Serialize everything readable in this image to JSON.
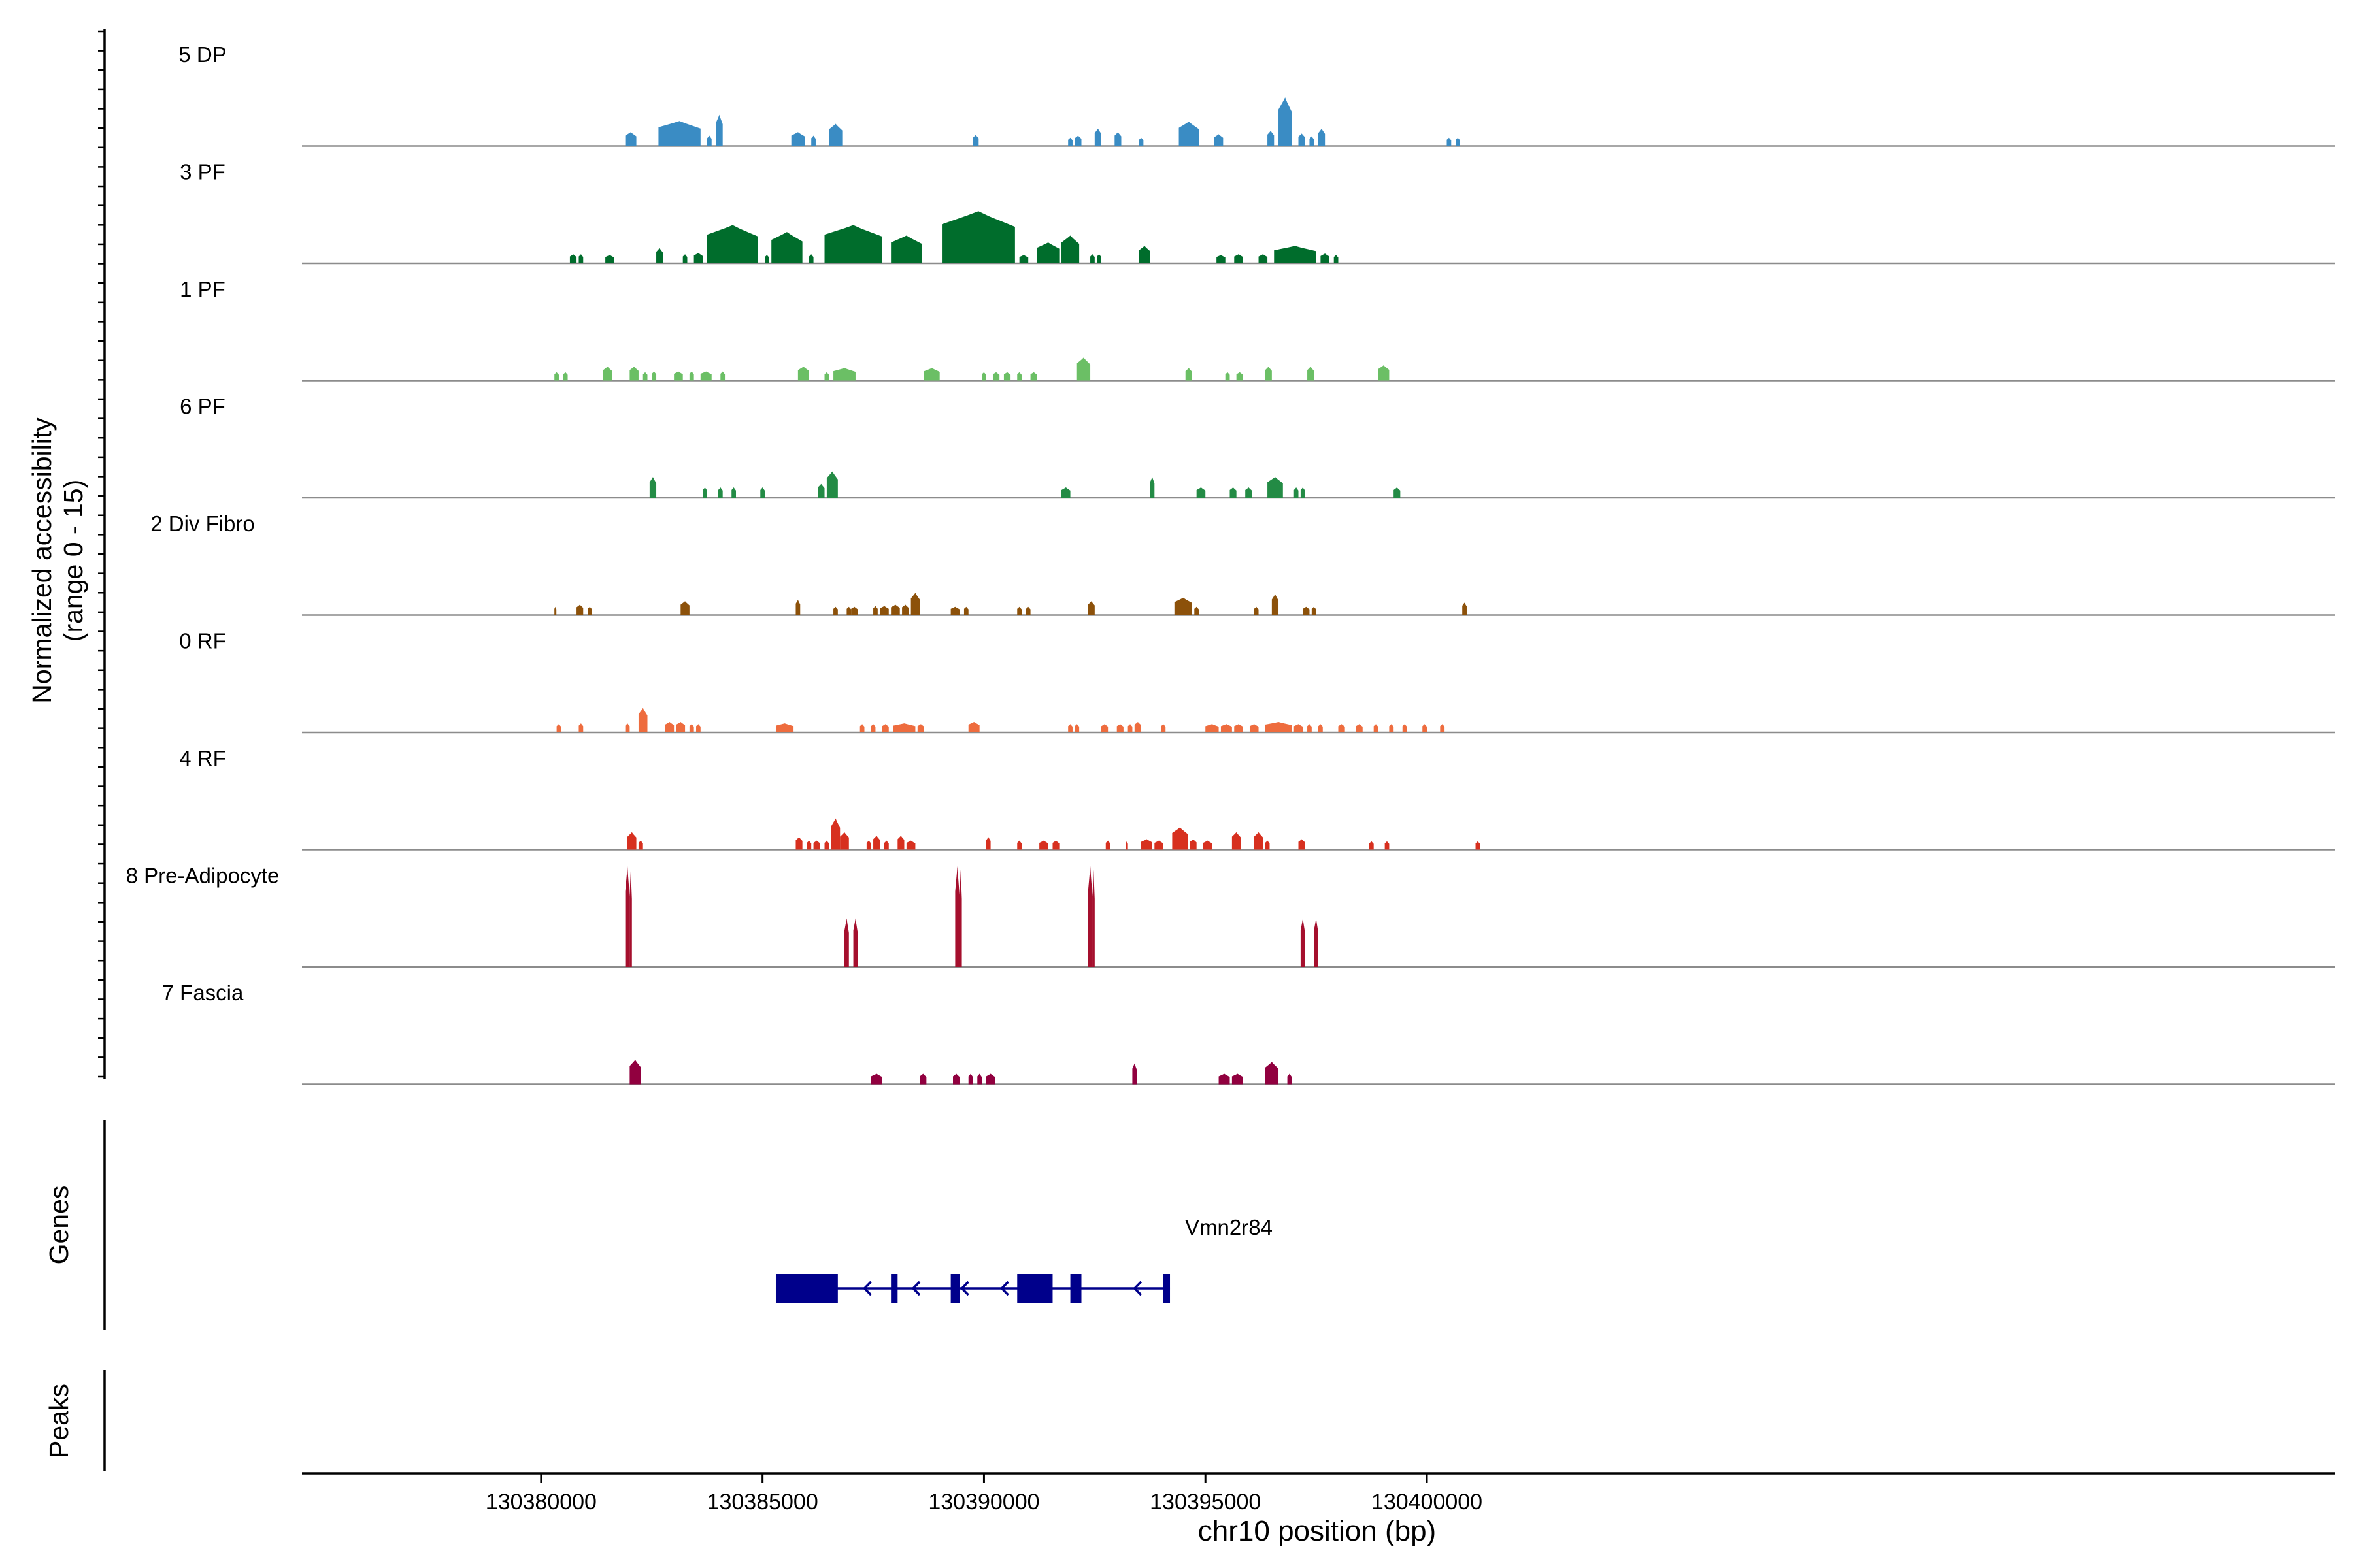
{
  "chart_data": {
    "type": "coverage",
    "ylabel_line1": "Normalized accessibility",
    "ylabel_line2": "(range 0 - 15)",
    "xlabel": "chr10 position (bp)",
    "xlim": [
      130374600,
      130420500
    ],
    "x_ticks": [
      130380000,
      130385000,
      130390000,
      130395000,
      130400000
    ],
    "y_range": [
      0,
      15
    ],
    "genes_label": "Genes",
    "peaks_label": "Peaks",
    "tracks": [
      {
        "name": "5 DP",
        "color": "#3a8cc4",
        "regions": [
          [
            130381900,
            130382150,
            2
          ],
          [
            130382650,
            130383600,
            3.6
          ],
          [
            130383750,
            130383850,
            1.5
          ],
          [
            130383950,
            130384100,
            4.5
          ],
          [
            130385650,
            130385950,
            2
          ],
          [
            130386100,
            130386200,
            1.5
          ],
          [
            130386500,
            130386800,
            3.2
          ],
          [
            130389750,
            130389880,
            1.6
          ],
          [
            130391900,
            130392000,
            1.2
          ],
          [
            130392050,
            130392200,
            1.5
          ],
          [
            130392500,
            130392650,
            2.5
          ],
          [
            130392950,
            130393100,
            2
          ],
          [
            130393500,
            130393600,
            1.2
          ],
          [
            130394400,
            130394850,
            3.5
          ],
          [
            130395200,
            130395400,
            1.7
          ],
          [
            130396400,
            130396550,
            2.2
          ],
          [
            130396650,
            130396950,
            7
          ],
          [
            130397100,
            130397250,
            1.8
          ],
          [
            130397350,
            130397450,
            1.4
          ],
          [
            130397550,
            130397700,
            2.5
          ],
          [
            130400450,
            130400550,
            1.2
          ],
          [
            130400650,
            130400750,
            1.2
          ]
        ]
      },
      {
        "name": "3 PF",
        "color": "#006d2c",
        "regions": [
          [
            130380650,
            130380800,
            1.3
          ],
          [
            130380850,
            130380950,
            1.3
          ],
          [
            130381450,
            130381650,
            1.2
          ],
          [
            130382600,
            130382750,
            2.2
          ],
          [
            130383200,
            130383300,
            1.3
          ],
          [
            130383450,
            130383650,
            1.5
          ],
          [
            130383750,
            130384900,
            5.5
          ],
          [
            130385050,
            130385150,
            1.2
          ],
          [
            130385200,
            130385900,
            4.5
          ],
          [
            130386050,
            130386150,
            1.3
          ],
          [
            130386400,
            130387700,
            5.5
          ],
          [
            130387900,
            130388600,
            4
          ],
          [
            130389050,
            130390700,
            7.5
          ],
          [
            130390800,
            130391000,
            1.2
          ],
          [
            130391200,
            130391700,
            3
          ],
          [
            130391750,
            130392150,
            4
          ],
          [
            130392400,
            130392500,
            1.3
          ],
          [
            130392550,
            130392650,
            1.3
          ],
          [
            130393500,
            130393750,
            2.5
          ],
          [
            130395250,
            130395450,
            1.2
          ],
          [
            130395650,
            130395850,
            1.3
          ],
          [
            130396200,
            130396400,
            1.3
          ],
          [
            130396550,
            130397500,
            2.5
          ],
          [
            130397600,
            130397800,
            1.4
          ],
          [
            130397900,
            130398000,
            1.2
          ]
        ]
      },
      {
        "name": "1 PF",
        "color": "#6bbf65",
        "regions": [
          [
            130380300,
            130380400,
            1.2
          ],
          [
            130380500,
            130380600,
            1.2
          ],
          [
            130381400,
            130381600,
            2
          ],
          [
            130382000,
            130382200,
            2
          ],
          [
            130382300,
            130382400,
            1.2
          ],
          [
            130382500,
            130382600,
            1.3
          ],
          [
            130383000,
            130383200,
            1.3
          ],
          [
            130383350,
            130383450,
            1.3
          ],
          [
            130383600,
            130383850,
            1.3
          ],
          [
            130384050,
            130384150,
            1.3
          ],
          [
            130385800,
            130386050,
            2
          ],
          [
            130386400,
            130386500,
            1.2
          ],
          [
            130386600,
            130387100,
            1.8
          ],
          [
            130388650,
            130389000,
            1.8
          ],
          [
            130389950,
            130390050,
            1.2
          ],
          [
            130390200,
            130390350,
            1.2
          ],
          [
            130390450,
            130390600,
            1.2
          ],
          [
            130390750,
            130390850,
            1.2
          ],
          [
            130391050,
            130391200,
            1.2
          ],
          [
            130392100,
            130392400,
            3.3
          ],
          [
            130394550,
            130394700,
            1.8
          ],
          [
            130395450,
            130395550,
            1.2
          ],
          [
            130395700,
            130395850,
            1.2
          ],
          [
            130396350,
            130396500,
            2
          ],
          [
            130397300,
            130397450,
            2
          ],
          [
            130398900,
            130399150,
            2.2
          ]
        ]
      },
      {
        "name": "6 PF",
        "color": "#238b45",
        "regions": [
          [
            130382450,
            130382600,
            3
          ],
          [
            130383650,
            130383750,
            1.5
          ],
          [
            130384000,
            130384100,
            1.5
          ],
          [
            130384300,
            130384400,
            1.5
          ],
          [
            130384950,
            130385050,
            1.5
          ],
          [
            130386250,
            130386400,
            2
          ],
          [
            130386450,
            130386700,
            3.8
          ],
          [
            130391750,
            130391950,
            1.5
          ],
          [
            130393750,
            130393850,
            3
          ],
          [
            130394800,
            130395000,
            1.5
          ],
          [
            130395550,
            130395700,
            1.5
          ],
          [
            130395900,
            130396050,
            1.5
          ],
          [
            130396400,
            130396750,
            3
          ],
          [
            130397000,
            130397100,
            1.5
          ],
          [
            130397150,
            130397250,
            1.5
          ],
          [
            130399250,
            130399400,
            1.5
          ]
        ]
      },
      {
        "name": "2 Div Fibro",
        "color": "#8c510a",
        "regions": [
          [
            130380300,
            130380330,
            1.2
          ],
          [
            130380800,
            130380950,
            1.5
          ],
          [
            130381050,
            130381150,
            1.2
          ],
          [
            130383150,
            130383350,
            2
          ],
          [
            130385750,
            130385850,
            2.2
          ],
          [
            130386600,
            130386700,
            1.2
          ],
          [
            130386900,
            130387000,
            1.2
          ],
          [
            130387000,
            130387150,
            1.2
          ],
          [
            130387500,
            130387600,
            1.3
          ],
          [
            130387650,
            130387850,
            1.3
          ],
          [
            130387900,
            130388100,
            1.5
          ],
          [
            130388150,
            130388300,
            1.5
          ],
          [
            130388350,
            130388550,
            3.2
          ],
          [
            130389250,
            130389450,
            1.2
          ],
          [
            130389550,
            130389650,
            1.2
          ],
          [
            130390750,
            130390850,
            1.2
          ],
          [
            130390950,
            130391050,
            1.2
          ],
          [
            130392350,
            130392500,
            2
          ],
          [
            130394300,
            130394700,
            2.5
          ],
          [
            130394750,
            130394850,
            1.2
          ],
          [
            130396100,
            130396200,
            1.2
          ],
          [
            130396500,
            130396650,
            3
          ],
          [
            130397200,
            130397350,
            1.2
          ],
          [
            130397400,
            130397500,
            1.2
          ],
          [
            130400800,
            130400900,
            1.8
          ]
        ]
      },
      {
        "name": "0 RF",
        "color": "#ee6c3e",
        "regions": [
          [
            130380350,
            130380450,
            1.2
          ],
          [
            130380850,
            130380950,
            1.3
          ],
          [
            130381900,
            130382000,
            1.3
          ],
          [
            130382200,
            130382400,
            3.5
          ],
          [
            130382800,
            130383000,
            1.5
          ],
          [
            130383050,
            130383250,
            1.5
          ],
          [
            130383350,
            130383450,
            1.2
          ],
          [
            130383500,
            130383600,
            1.2
          ],
          [
            130385300,
            130385700,
            1.3
          ],
          [
            130387200,
            130387300,
            1.2
          ],
          [
            130387450,
            130387550,
            1.2
          ],
          [
            130387700,
            130387850,
            1.2
          ],
          [
            130387950,
            130388450,
            1.3
          ],
          [
            130388500,
            130388650,
            1.2
          ],
          [
            130389650,
            130389900,
            1.5
          ],
          [
            130391900,
            130392000,
            1.2
          ],
          [
            130392050,
            130392150,
            1.2
          ],
          [
            130392650,
            130392800,
            1.2
          ],
          [
            130393000,
            130393150,
            1.2
          ],
          [
            130393250,
            130393350,
            1.2
          ],
          [
            130393400,
            130393550,
            1.5
          ],
          [
            130394000,
            130394100,
            1.2
          ],
          [
            130395000,
            130395300,
            1.2
          ],
          [
            130395350,
            130395600,
            1.2
          ],
          [
            130395650,
            130395850,
            1.2
          ],
          [
            130396000,
            130396200,
            1.2
          ],
          [
            130396350,
            130396950,
            1.5
          ],
          [
            130397000,
            130397200,
            1.2
          ],
          [
            130397300,
            130397400,
            1.2
          ],
          [
            130397550,
            130397650,
            1.2
          ],
          [
            130398000,
            130398150,
            1.2
          ],
          [
            130398400,
            130398550,
            1.2
          ],
          [
            130398800,
            130398900,
            1.2
          ],
          [
            130399150,
            130399250,
            1.2
          ],
          [
            130399450,
            130399550,
            1.2
          ],
          [
            130399900,
            130400000,
            1.2
          ],
          [
            130400300,
            130400400,
            1.2
          ]
        ]
      },
      {
        "name": "4 RF",
        "color": "#d7301f",
        "regions": [
          [
            130381950,
            130382150,
            2.5
          ],
          [
            130382200,
            130382300,
            1.3
          ],
          [
            130385750,
            130385900,
            1.8
          ],
          [
            130386000,
            130386100,
            1.3
          ],
          [
            130386150,
            130386300,
            1.3
          ],
          [
            130386400,
            130386500,
            1.3
          ],
          [
            130386550,
            130386750,
            4.5
          ],
          [
            130386750,
            130386950,
            2.5
          ],
          [
            130387350,
            130387450,
            1.3
          ],
          [
            130387500,
            130387650,
            2
          ],
          [
            130387750,
            130387850,
            1.3
          ],
          [
            130388050,
            130388200,
            2
          ],
          [
            130388250,
            130388450,
            1.3
          ],
          [
            130390050,
            130390150,
            1.8
          ],
          [
            130390750,
            130390850,
            1.3
          ],
          [
            130391250,
            130391450,
            1.3
          ],
          [
            130391550,
            130391700,
            1.3
          ],
          [
            130392750,
            130392850,
            1.3
          ],
          [
            130393200,
            130393250,
            1.2
          ],
          [
            130393550,
            130393800,
            1.5
          ],
          [
            130393850,
            130394050,
            1.3
          ],
          [
            130394250,
            130394600,
            3.2
          ],
          [
            130394650,
            130394800,
            1.5
          ],
          [
            130394950,
            130395150,
            1.3
          ],
          [
            130395600,
            130395800,
            2.5
          ],
          [
            130396100,
            130396300,
            2.5
          ],
          [
            130396350,
            130396450,
            1.3
          ],
          [
            130397100,
            130397250,
            1.5
          ],
          [
            130398700,
            130398800,
            1.2
          ],
          [
            130399050,
            130399150,
            1.2
          ],
          [
            130401100,
            130401200,
            1.2
          ]
        ]
      },
      {
        "name": "8 Pre-Adipocyte",
        "color": "#a50f2d",
        "regions": [
          [
            130381900,
            130382000,
            14.5
          ],
          [
            130382000,
            130382050,
            14
          ],
          [
            130386850,
            130386950,
            7
          ],
          [
            130387050,
            130387150,
            7
          ],
          [
            130389350,
            130389450,
            14.5
          ],
          [
            130389450,
            130389500,
            14
          ],
          [
            130392350,
            130392450,
            14.5
          ],
          [
            130392450,
            130392500,
            14
          ],
          [
            130397150,
            130397250,
            7
          ],
          [
            130397450,
            130397550,
            7
          ]
        ]
      },
      {
        "name": "7 Fascia",
        "color": "#91003f",
        "regions": [
          [
            130382000,
            130382250,
            3.5
          ],
          [
            130387450,
            130387700,
            1.5
          ],
          [
            130388550,
            130388700,
            1.5
          ],
          [
            130389300,
            130389450,
            1.5
          ],
          [
            130389650,
            130389750,
            1.5
          ],
          [
            130389850,
            130389950,
            1.5
          ],
          [
            130390050,
            130390250,
            1.5
          ],
          [
            130393350,
            130393450,
            3
          ],
          [
            130395300,
            130395550,
            1.5
          ],
          [
            130395600,
            130395850,
            1.5
          ],
          [
            130396350,
            130396650,
            3.2
          ],
          [
            130396850,
            130396950,
            1.5
          ]
        ]
      }
    ],
    "gene": {
      "name": "Vmn2r84",
      "color": "#00008b",
      "strand": "-",
      "span": [
        130385300,
        130394200
      ],
      "exons": [
        [
          130385300,
          130386700
        ],
        [
          130387900,
          130388050
        ],
        [
          130389250,
          130389450
        ],
        [
          130390750,
          130391550
        ],
        [
          130391950,
          130392200
        ],
        [
          130394050,
          130394200
        ]
      ]
    }
  }
}
